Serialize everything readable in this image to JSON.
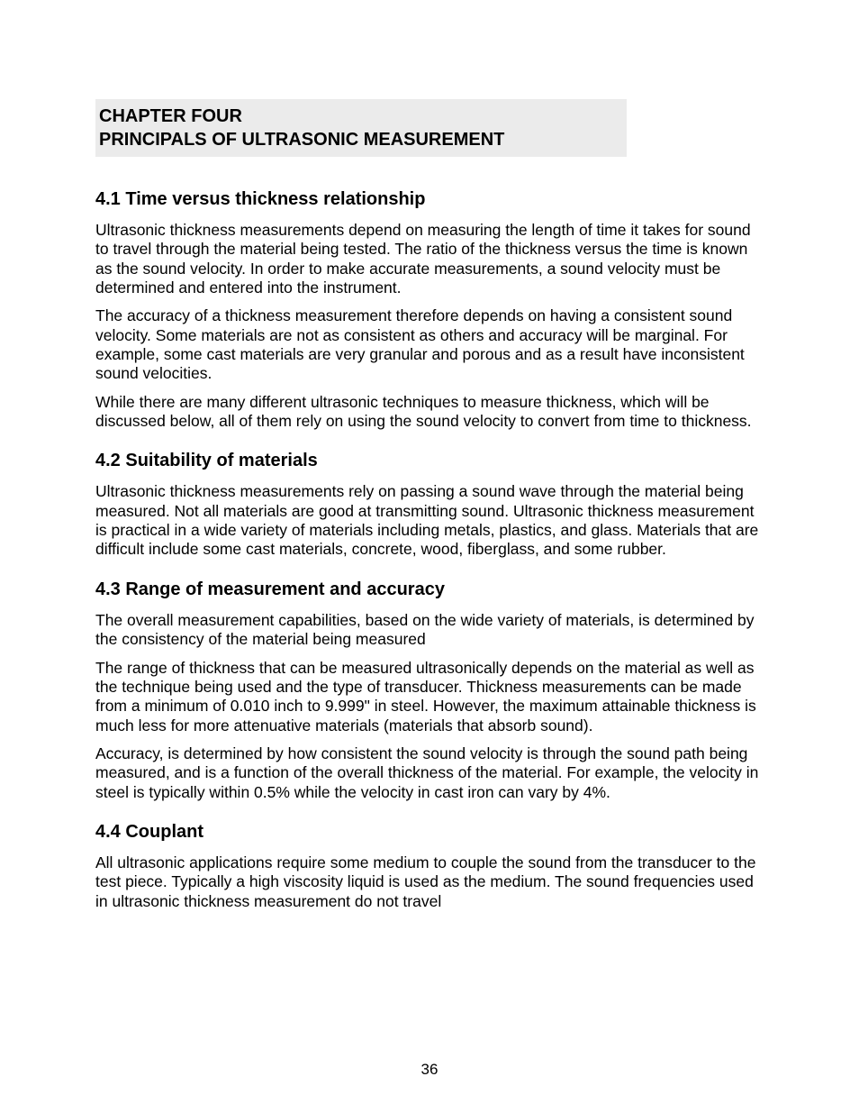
{
  "document": {
    "type": "technical-manual-page",
    "background_color": "#ffffff",
    "text_color": "#000000",
    "chapter_header_bg": "#ebebeb",
    "page_number": "36",
    "chapter": {
      "line1": "CHAPTER FOUR",
      "line2": "PRINCIPALS OF ULTRASONIC MEASUREMENT"
    },
    "sections": [
      {
        "heading": "4.1 Time versus thickness relationship",
        "paragraphs": [
          "Ultrasonic thickness measurements depend on measuring the length of time it takes for sound to travel through the material being tested.  The ratio of the thickness versus the time is known as the sound velocity.  In order to make accurate measurements, a sound velocity must be determined and entered into the instrument.",
          "The accuracy of a thickness measurement therefore depends on having a consistent sound velocity.  Some materials are not as consistent as others and accuracy will be marginal.  For example, some cast materials are very granular and porous and as a result have inconsistent sound velocities.",
          "While there are many different ultrasonic techniques to measure thickness, which will be discussed below, all of them rely on using the sound velocity to convert from time to thickness."
        ]
      },
      {
        "heading": "4.2 Suitability of materials",
        "paragraphs": [
          "Ultrasonic thickness measurements rely on passing a sound wave through the material being measured.  Not all materials are good at transmitting sound.  Ultrasonic thickness measurement is practical in a wide variety of materials including metals, plastics, and glass.  Materials that are difficult include some cast materials, concrete, wood, fiberglass, and some rubber."
        ]
      },
      {
        "heading": "4.3 Range of measurement and accuracy",
        "paragraphs": [
          "The overall measurement capabilities, based on the wide variety of materials, is determined by the consistency of the material being measured",
          "The range of thickness that can be measured ultrasonically depends on the material as well as the technique being used and the type of transducer.  Thickness measurements can be made from a minimum of 0.010 inch to 9.999\" in steel.  However, the maximum attainable thickness is much less for more attenuative materials (materials that absorb sound).",
          "Accuracy, is determined by how consistent the sound velocity is through the sound path being measured, and is a function of the overall thickness of the material.  For example, the velocity in steel is typically within 0.5% while the velocity in cast iron can vary by 4%."
        ]
      },
      {
        "heading": "4.4 Couplant",
        "paragraphs": [
          "All ultrasonic applications require some medium to couple the sound from the transducer to the test piece.  Typically a high viscosity liquid is used as the medium.  The sound frequencies used in ultrasonic thickness measurement do not travel"
        ]
      }
    ]
  }
}
